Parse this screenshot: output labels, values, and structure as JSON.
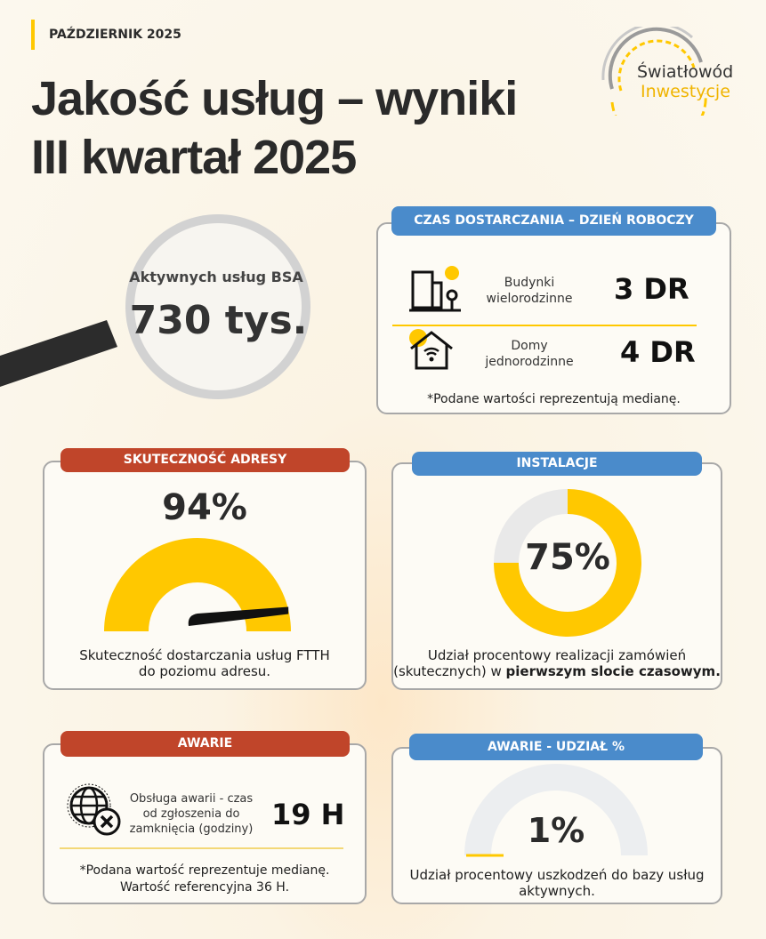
{
  "header": {
    "month": "PAŹDZIERNIK 2025",
    "title_line1": "Jakość usług – wyniki",
    "title_line2": "III kwartał 2025"
  },
  "logo": {
    "line1": "Światłowód",
    "line2": "Inwestycje"
  },
  "bsa": {
    "label": "Aktywnych usług BSA",
    "value": "730 tys."
  },
  "delivery": {
    "header": "CZAS DOSTARCZANIA – DZIEŃ ROBOCZY",
    "rows": [
      {
        "label1": "Budynki",
        "label2": "wielorodzinne",
        "value": "3 DR",
        "icon": "apartment-building-icon"
      },
      {
        "label1": "Domy",
        "label2": "jednorodzinne",
        "value": "4 DR",
        "icon": "house-wifi-icon"
      }
    ],
    "note": "*Podane wartości reprezentują medianę."
  },
  "address": {
    "header": "SKUTECZNOŚĆ ADRESY",
    "value": "94%",
    "percent": 94,
    "desc1": "Skuteczność dostarczania usług FTTH",
    "desc2": "do poziomu adresu."
  },
  "install": {
    "header": "INSTALACJE",
    "value": "75%",
    "percent": 75,
    "desc1": "Udział procentowy realizacji zamówień",
    "desc2_prefix": "(skutecznych) w ",
    "desc2_bold": "pierwszym slocie czasowym."
  },
  "failures": {
    "header": "AWARIE",
    "label1": "Obsługa awarii - czas",
    "label2": "od zgłoszenia do",
    "label3": "zamknięcia (godziny)",
    "value": "19 H",
    "note1": "*Podana wartość reprezentuje medianę.",
    "note2": "Wartość referencyjna 36 H."
  },
  "failure_share": {
    "header": "AWARIE - UDZIAŁ %",
    "value": "1%",
    "percent": 1,
    "desc1": "Udział procentowy uszkodzeń do bazy usług",
    "desc2": "aktywnych."
  },
  "colors": {
    "yellow": "#ffc800",
    "blue": "#4a8bcb",
    "red": "#c0452a",
    "gray": "#e9e9e9"
  }
}
